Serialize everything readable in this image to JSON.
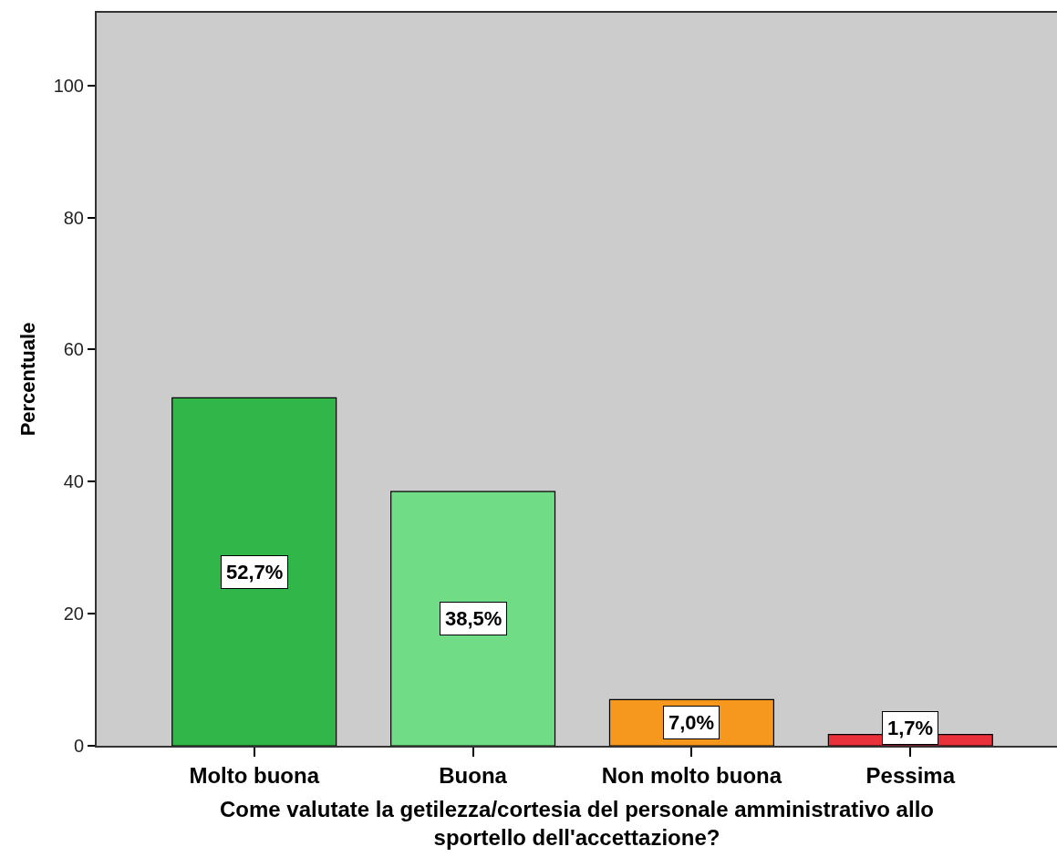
{
  "chart_data": {
    "type": "bar",
    "xlabel": "Come valutate la getilezza/cortesia del personale amministrativo allo sportello dell'accettazione?",
    "ylabel": "Percentuale",
    "categories": [
      "Molto buona",
      "Buona",
      "Non molto buona",
      "Pessima"
    ],
    "values": [
      52.7,
      38.5,
      7.0,
      1.7
    ],
    "colors": [
      "#31b64a",
      "#70dc86",
      "#f7981e",
      "#e8313a"
    ],
    "value_labels": [
      "52,7%",
      "38,5%",
      "7,0%",
      "1,7%"
    ],
    "ylim": [
      0,
      111
    ],
    "yticks": [
      0,
      20,
      40,
      60,
      80,
      100
    ],
    "grid": false
  }
}
